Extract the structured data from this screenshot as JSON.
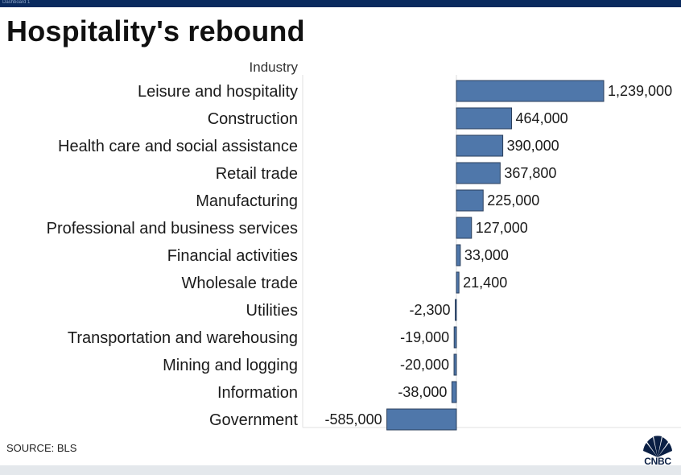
{
  "window": {
    "tab_label": "Dashboard 1"
  },
  "header": {
    "title": "Hospitality's rebound"
  },
  "footer": {
    "source": "SOURCE: BLS"
  },
  "brand": {
    "logo_text": "CNBC",
    "bar_color": "#4f77aa",
    "topbar_color": "#0a2a5e"
  },
  "chart_data": {
    "type": "bar",
    "orientation": "horizontal",
    "title": "Hospitality's rebound",
    "column_header": "Industry",
    "xlabel": "",
    "ylabel": "Industry",
    "xlim": [
      -585000,
      1239000
    ],
    "grid": false,
    "categories": [
      "Leisure and hospitality",
      "Construction",
      "Health care and social assistance",
      "Retail trade",
      "Manufacturing",
      "Professional and business services",
      "Financial activities",
      "Wholesale trade",
      "Utilities",
      "Transportation and warehousing",
      "Mining and logging",
      "Information",
      "Government"
    ],
    "values": [
      1239000,
      464000,
      390000,
      367800,
      225000,
      127000,
      33000,
      21400,
      -2300,
      -19000,
      -20000,
      -38000,
      -585000
    ],
    "value_labels": [
      "1,239,000",
      "464,000",
      "390,000",
      "367,800",
      "225,000",
      "127,000",
      "33,000",
      "21,400",
      "-2,300",
      "-19,000",
      "-20,000",
      "-38,000",
      "-585,000"
    ]
  }
}
